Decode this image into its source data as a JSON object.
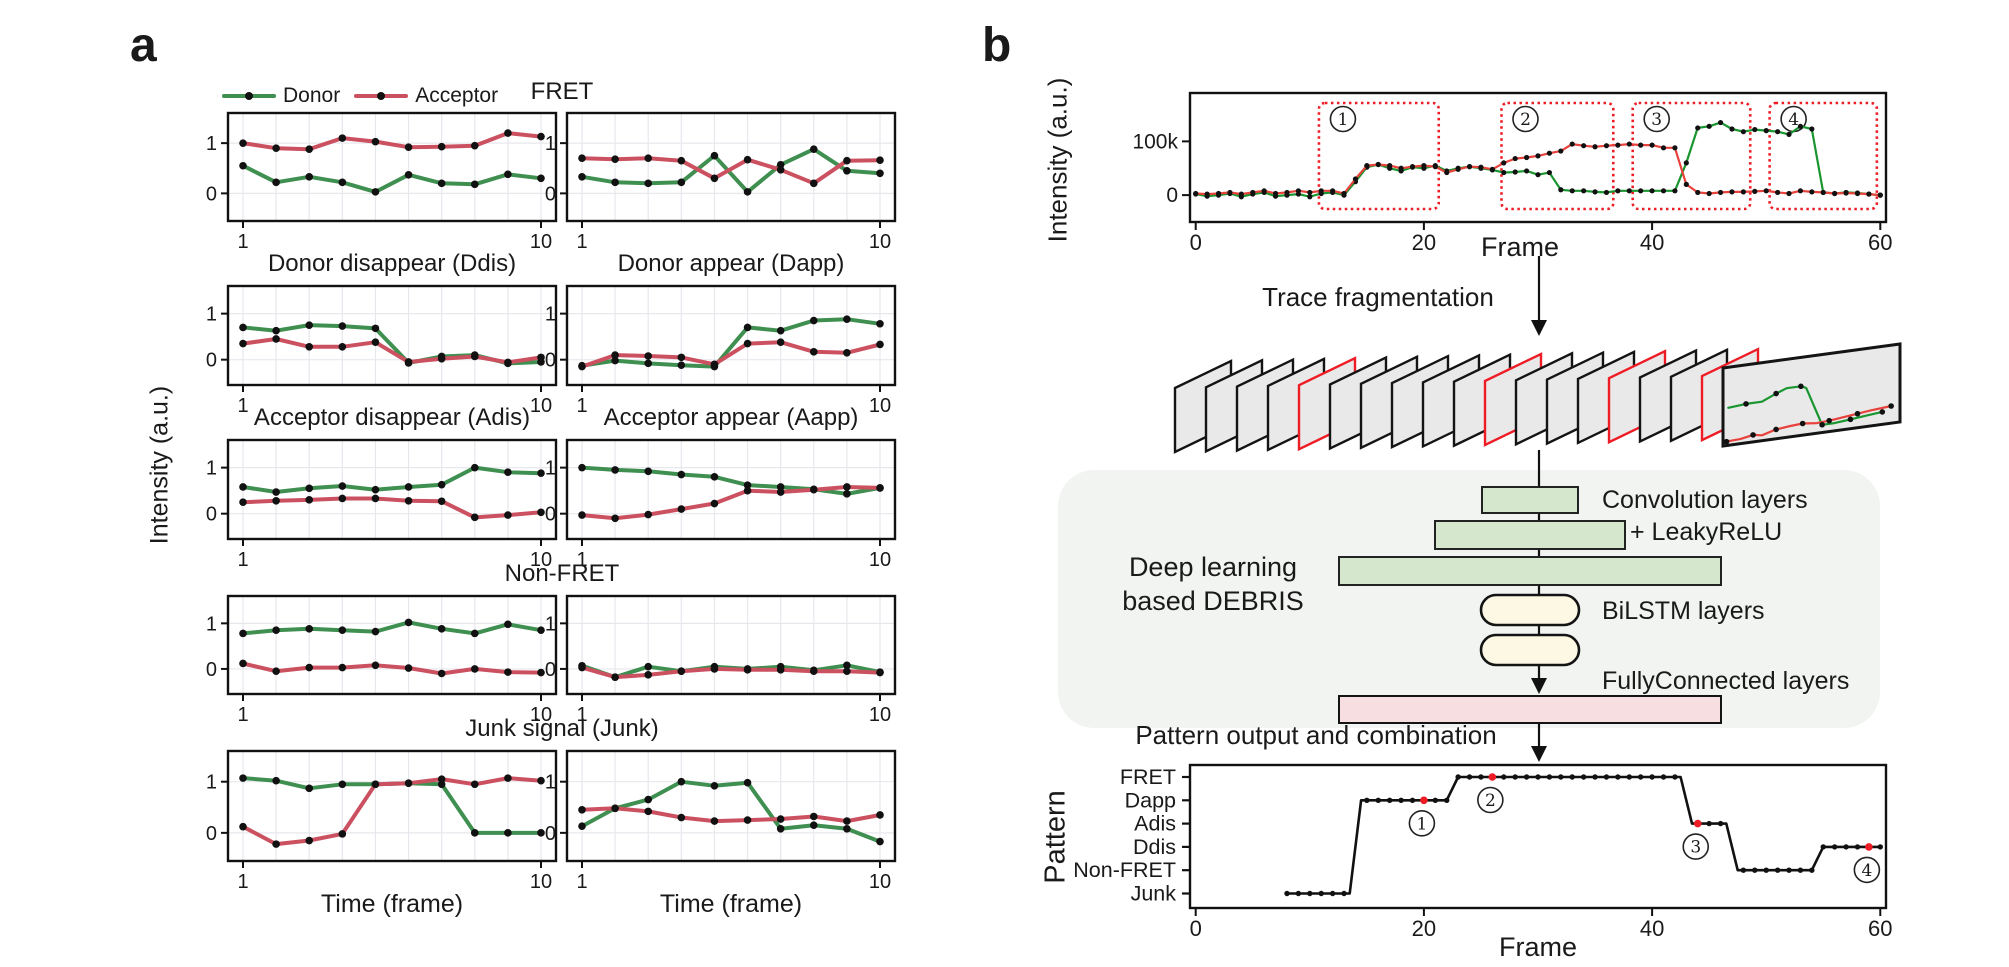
{
  "figure": {
    "panel_a_label": "a",
    "panel_b_label": "b"
  },
  "colors": {
    "donor_a": "#3f8f51",
    "acceptor_a": "#cb5160",
    "donor_b": "#1a9630",
    "acceptor_b": "#e8423c",
    "marker": "#111111",
    "grid": "#e7e7ee",
    "axis": "#111111",
    "box_red": "#ee1c25",
    "card_fill": "#e9e9e9",
    "card_edge": "#141414",
    "dl_bg": "#f2f4f1",
    "conv_fill": "#d5e8cd",
    "lstm_fill": "#fcf8e4",
    "fc_fill": "#f7dee1"
  },
  "legend": {
    "donor": "Donor",
    "acceptor": "Acceptor"
  },
  "panel_a": {
    "ylabel": "Intensity (a.u.)",
    "xlabel": "Time (frame)",
    "titles": {
      "fret": "FRET",
      "ddis": "Donor disappear (Ddis)",
      "dapp": "Donor appear (Dapp)",
      "adis": "Acceptor disappear (Adis)",
      "aapp": "Acceptor appear (Aapp)",
      "nonfret": "Non-FRET",
      "junk": "Junk signal (Junk)"
    },
    "rows": [
      {
        "title_span": "row",
        "charts": [
          "a-fret-left",
          "a-fret-right"
        ]
      },
      {
        "title_span": "each",
        "charts": [
          "a-ddis",
          "a-dapp"
        ]
      },
      {
        "title_span": "each",
        "charts": [
          "a-adis",
          "a-aapp"
        ]
      },
      {
        "title_span": "row",
        "charts": [
          "a-nonfret-left",
          "a-nonfret-right"
        ]
      },
      {
        "title_span": "row",
        "charts": [
          "a-junk-left",
          "a-junk-right"
        ]
      }
    ]
  },
  "panel_b": {
    "fragmentation_label": "Trace fragmentation",
    "stack": {
      "card_count": 18,
      "red_card_indices": [
        4,
        10,
        14,
        17
      ],
      "front_card_trace": {
        "donor": [
          [
            0.03,
            0.52
          ],
          [
            0.13,
            0.5
          ],
          [
            0.22,
            0.5
          ],
          [
            0.3,
            0.42
          ],
          [
            0.36,
            0.37
          ],
          [
            0.44,
            0.37
          ],
          [
            0.47,
            0.4
          ],
          [
            0.56,
            0.9
          ],
          [
            0.63,
            0.9
          ],
          [
            0.72,
            0.88
          ],
          [
            0.81,
            0.86
          ],
          [
            0.9,
            0.84
          ]
        ],
        "acceptor": [
          [
            0.02,
            0.95
          ],
          [
            0.1,
            0.94
          ],
          [
            0.17,
            0.91
          ],
          [
            0.22,
            0.93
          ],
          [
            0.3,
            0.88
          ],
          [
            0.38,
            0.86
          ],
          [
            0.45,
            0.85
          ],
          [
            0.53,
            0.87
          ],
          [
            0.6,
            0.86
          ],
          [
            0.68,
            0.84
          ],
          [
            0.76,
            0.82
          ],
          [
            0.84,
            0.8
          ],
          [
            0.95,
            0.78
          ]
        ]
      }
    },
    "dl": {
      "left_label_line1": "Deep learning",
      "left_label_line2": "based DEBRIS",
      "conv_label_line1": "Convolution layers",
      "conv_label_line2": "+ LeakyReLU",
      "lstm_label": "BiLSTM layers",
      "fc_label": "FullyConnected layers"
    },
    "pattern_title": "Pattern output and combination"
  },
  "chart_data": [
    {
      "id": "a-fret-left",
      "type": "line",
      "title": "FRET",
      "xlabel": "Time (frame)",
      "ylabel": "Intensity (a.u.)",
      "x": [
        1,
        2,
        3,
        4,
        5,
        6,
        7,
        8,
        9,
        10
      ],
      "xtick_labels": [
        "1",
        "10"
      ],
      "ytick_values": [
        1,
        0
      ],
      "ytick_labels": [
        "1",
        "0"
      ],
      "ylim": [
        -0.55,
        1.6
      ],
      "series": [
        {
          "name": "Donor",
          "values": [
            0.55,
            0.22,
            0.33,
            0.22,
            0.03,
            0.37,
            0.2,
            0.18,
            0.38,
            0.3
          ]
        },
        {
          "name": "Acceptor",
          "values": [
            1.0,
            0.9,
            0.88,
            1.1,
            1.03,
            0.92,
            0.93,
            0.95,
            1.2,
            1.13
          ]
        }
      ]
    },
    {
      "id": "a-fret-right",
      "type": "line",
      "title": "FRET",
      "xlabel": "Time (frame)",
      "ylabel": "Intensity (a.u.)",
      "x": [
        1,
        2,
        3,
        4,
        5,
        6,
        7,
        8,
        9,
        10
      ],
      "xtick_labels": [
        "1",
        "10"
      ],
      "ytick_values": [
        1,
        0
      ],
      "ytick_labels": [
        "1",
        "0"
      ],
      "ylim": [
        -0.55,
        1.6
      ],
      "series": [
        {
          "name": "Donor",
          "values": [
            0.33,
            0.22,
            0.2,
            0.22,
            0.75,
            0.03,
            0.57,
            0.88,
            0.45,
            0.4
          ]
        },
        {
          "name": "Acceptor",
          "values": [
            0.7,
            0.68,
            0.7,
            0.65,
            0.3,
            0.67,
            0.47,
            0.2,
            0.65,
            0.66
          ]
        }
      ]
    },
    {
      "id": "a-ddis",
      "type": "line",
      "title": "Donor disappear (Ddis)",
      "xlabel": "Time (frame)",
      "ylabel": "Intensity (a.u.)",
      "x": [
        1,
        2,
        3,
        4,
        5,
        6,
        7,
        8,
        9,
        10
      ],
      "xtick_labels": [
        "1",
        "10"
      ],
      "ytick_values": [
        1,
        0
      ],
      "ytick_labels": [
        "1",
        "0"
      ],
      "ylim": [
        -0.55,
        1.6
      ],
      "series": [
        {
          "name": "Donor",
          "values": [
            0.7,
            0.63,
            0.75,
            0.73,
            0.68,
            -0.07,
            0.07,
            0.1,
            -0.08,
            -0.05
          ]
        },
        {
          "name": "Acceptor",
          "values": [
            0.35,
            0.45,
            0.28,
            0.28,
            0.38,
            -0.05,
            0.02,
            0.07,
            -0.06,
            0.05
          ]
        }
      ]
    },
    {
      "id": "a-dapp",
      "type": "line",
      "title": "Donor appear (Dapp)",
      "xlabel": "Time (frame)",
      "ylabel": "Intensity (a.u.)",
      "x": [
        1,
        2,
        3,
        4,
        5,
        6,
        7,
        8,
        9,
        10
      ],
      "xtick_labels": [
        "1",
        "10"
      ],
      "ytick_values": [
        1,
        0
      ],
      "ytick_labels": [
        "1",
        "0"
      ],
      "ylim": [
        -0.55,
        1.6
      ],
      "series": [
        {
          "name": "Donor",
          "values": [
            -0.13,
            -0.02,
            -0.08,
            -0.12,
            -0.15,
            0.7,
            0.63,
            0.85,
            0.88,
            0.78
          ]
        },
        {
          "name": "Acceptor",
          "values": [
            -0.15,
            0.1,
            0.08,
            0.05,
            -0.1,
            0.35,
            0.38,
            0.17,
            0.15,
            0.33
          ]
        }
      ]
    },
    {
      "id": "a-adis",
      "type": "line",
      "title": "Acceptor disappear (Adis)",
      "xlabel": "Time (frame)",
      "ylabel": "Intensity (a.u.)",
      "x": [
        1,
        2,
        3,
        4,
        5,
        6,
        7,
        8,
        9,
        10
      ],
      "xtick_labels": [
        "1",
        "10"
      ],
      "ytick_values": [
        1,
        0
      ],
      "ytick_labels": [
        "1",
        "0"
      ],
      "ylim": [
        -0.55,
        1.6
      ],
      "series": [
        {
          "name": "Donor",
          "values": [
            0.58,
            0.47,
            0.55,
            0.6,
            0.52,
            0.58,
            0.63,
            1.0,
            0.9,
            0.88
          ]
        },
        {
          "name": "Acceptor",
          "values": [
            0.25,
            0.28,
            0.3,
            0.33,
            0.33,
            0.28,
            0.27,
            -0.08,
            -0.03,
            0.03
          ]
        }
      ]
    },
    {
      "id": "a-aapp",
      "type": "line",
      "title": "Acceptor appear (Aapp)",
      "xlabel": "Time (frame)",
      "ylabel": "Intensity (a.u.)",
      "x": [
        1,
        2,
        3,
        4,
        5,
        6,
        7,
        8,
        9,
        10
      ],
      "xtick_labels": [
        "1",
        "10"
      ],
      "ytick_values": [
        1,
        0
      ],
      "ytick_labels": [
        "1",
        "0"
      ],
      "ylim": [
        -0.55,
        1.6
      ],
      "series": [
        {
          "name": "Donor",
          "values": [
            1.0,
            0.95,
            0.92,
            0.85,
            0.8,
            0.62,
            0.58,
            0.53,
            0.43,
            0.56
          ]
        },
        {
          "name": "Acceptor",
          "values": [
            -0.03,
            -0.1,
            -0.02,
            0.1,
            0.22,
            0.5,
            0.47,
            0.52,
            0.58,
            0.56
          ]
        }
      ]
    },
    {
      "id": "a-nonfret-left",
      "type": "line",
      "title": "Non-FRET",
      "xlabel": "Time (frame)",
      "ylabel": "Intensity (a.u.)",
      "x": [
        1,
        2,
        3,
        4,
        5,
        6,
        7,
        8,
        9,
        10
      ],
      "xtick_labels": [
        "1",
        "10"
      ],
      "ytick_values": [
        1,
        0
      ],
      "ytick_labels": [
        "1",
        "0"
      ],
      "ylim": [
        -0.55,
        1.6
      ],
      "series": [
        {
          "name": "Donor",
          "values": [
            0.78,
            0.85,
            0.88,
            0.85,
            0.82,
            1.02,
            0.88,
            0.78,
            0.98,
            0.85
          ]
        },
        {
          "name": "Acceptor",
          "values": [
            0.12,
            -0.05,
            0.03,
            0.03,
            0.08,
            0.02,
            -0.1,
            0.0,
            -0.07,
            -0.08
          ]
        }
      ]
    },
    {
      "id": "a-nonfret-right",
      "type": "line",
      "title": "Non-FRET",
      "xlabel": "Time (frame)",
      "ylabel": "Intensity (a.u.)",
      "x": [
        1,
        2,
        3,
        4,
        5,
        6,
        7,
        8,
        9,
        10
      ],
      "xtick_labels": [
        "1",
        "10"
      ],
      "ytick_values": [
        1,
        0
      ],
      "ytick_labels": [
        "1",
        "0"
      ],
      "ylim": [
        -0.55,
        1.6
      ],
      "series": [
        {
          "name": "Donor",
          "values": [
            0.07,
            -0.18,
            0.05,
            -0.05,
            0.05,
            0.0,
            0.05,
            -0.03,
            0.08,
            -0.07
          ]
        },
        {
          "name": "Acceptor",
          "values": [
            0.03,
            -0.18,
            -0.13,
            -0.05,
            0.0,
            -0.02,
            -0.02,
            -0.05,
            -0.05,
            -0.08
          ]
        }
      ]
    },
    {
      "id": "a-junk-left",
      "type": "line",
      "title": "Junk signal (Junk)",
      "xlabel": "Time (frame)",
      "ylabel": "Intensity (a.u.)",
      "x": [
        1,
        2,
        3,
        4,
        5,
        6,
        7,
        8,
        9,
        10
      ],
      "xtick_labels": [
        "1",
        "10"
      ],
      "ytick_values": [
        1,
        0
      ],
      "ytick_labels": [
        "1",
        "0"
      ],
      "ylim": [
        -0.55,
        1.6
      ],
      "series": [
        {
          "name": "Donor",
          "values": [
            1.07,
            1.02,
            0.87,
            0.95,
            0.95,
            0.97,
            0.95,
            0.0,
            0.0,
            0.0
          ]
        },
        {
          "name": "Acceptor",
          "values": [
            0.12,
            -0.22,
            -0.15,
            -0.02,
            0.95,
            0.97,
            1.05,
            0.95,
            1.07,
            1.02
          ]
        }
      ]
    },
    {
      "id": "a-junk-right",
      "type": "line",
      "title": "Junk signal (Junk)",
      "xlabel": "Time (frame)",
      "ylabel": "Intensity (a.u.)",
      "x": [
        1,
        2,
        3,
        4,
        5,
        6,
        7,
        8,
        9,
        10
      ],
      "xtick_labels": [
        "1",
        "10"
      ],
      "ytick_values": [
        1,
        0
      ],
      "ytick_labels": [
        "1",
        "0"
      ],
      "ylim": [
        -0.55,
        1.6
      ],
      "series": [
        {
          "name": "Donor",
          "values": [
            0.13,
            0.48,
            0.65,
            1.0,
            0.92,
            0.98,
            0.08,
            0.15,
            0.08,
            -0.17
          ]
        },
        {
          "name": "Acceptor",
          "values": [
            0.45,
            0.48,
            0.42,
            0.3,
            0.23,
            0.25,
            0.27,
            0.32,
            0.23,
            0.35
          ]
        }
      ]
    },
    {
      "id": "b-trace",
      "type": "line",
      "title": "",
      "xlabel": "Frame",
      "ylabel": "Intensity (a.u.)",
      "x_unit": "frame 0-60",
      "y_unit": "a.u. x1000",
      "xtick_values": [
        0,
        20,
        40,
        60
      ],
      "xtick_labels": [
        "0",
        "20",
        "40",
        "60"
      ],
      "ytick_values": [
        100,
        0
      ],
      "ytick_labels": [
        "100k",
        "0"
      ],
      "ylim": [
        -50,
        190
      ],
      "series": [
        {
          "name": "Donor",
          "values": [
            2,
            -2,
            0,
            3,
            -3,
            2,
            5,
            -2,
            0,
            2,
            -3,
            3,
            5,
            0,
            25,
            52,
            57,
            50,
            45,
            52,
            50,
            55,
            45,
            50,
            53,
            50,
            47,
            42,
            43,
            45,
            38,
            42,
            10,
            8,
            8,
            6,
            5,
            8,
            8,
            8,
            8,
            8,
            8,
            60,
            125,
            128,
            135,
            123,
            118,
            122,
            120,
            118,
            113,
            128,
            123,
            5,
            3,
            5,
            4,
            2,
            0
          ]
        },
        {
          "name": "Acceptor",
          "values": [
            3,
            2,
            3,
            5,
            2,
            5,
            8,
            3,
            5,
            8,
            5,
            8,
            8,
            3,
            30,
            55,
            57,
            55,
            50,
            53,
            55,
            53,
            42,
            48,
            53,
            52,
            48,
            60,
            68,
            70,
            73,
            78,
            82,
            95,
            92,
            90,
            92,
            93,
            95,
            93,
            93,
            88,
            88,
            20,
            5,
            3,
            5,
            6,
            6,
            7,
            8,
            5,
            3,
            8,
            6,
            5,
            3,
            4,
            3,
            2,
            0
          ]
        }
      ],
      "boxes": [
        {
          "label": "1",
          "from": 10.8,
          "to": 21.3
        },
        {
          "label": "2",
          "from": 26.8,
          "to": 36.6
        },
        {
          "label": "3",
          "from": 38.3,
          "to": 48.6
        },
        {
          "label": "4",
          "from": 50.3,
          "to": 59.7
        }
      ]
    },
    {
      "id": "b-pattern",
      "type": "step",
      "title": "Pattern output and combination",
      "xlabel": "Frame",
      "ylabel": "Pattern",
      "categories": [
        "FRET",
        "Dapp",
        "Adis",
        "Ddis",
        "Non-FRET",
        "Junk"
      ],
      "xtick_values": [
        0,
        20,
        40,
        60
      ],
      "xtick_labels": [
        "0",
        "20",
        "40",
        "60"
      ],
      "segments": [
        {
          "category": "Junk",
          "from": 8,
          "to": 13.5
        },
        {
          "category": "Dapp",
          "from": 14.5,
          "to": 22
        },
        {
          "category": "FRET",
          "from": 23,
          "to": 42.5
        },
        {
          "category": "Adis",
          "from": 43.5,
          "to": 46.5
        },
        {
          "category": "Non-FRET",
          "from": 47.5,
          "to": 54
        },
        {
          "category": "Ddis",
          "from": 55,
          "to": 60
        }
      ],
      "markers": [
        {
          "frame": 20,
          "category": "Dapp",
          "label": "1"
        },
        {
          "frame": 26,
          "category": "FRET",
          "label": "2"
        },
        {
          "frame": 44,
          "category": "Adis",
          "label": "3"
        },
        {
          "frame": 59,
          "category": "Ddis",
          "label": "4"
        }
      ]
    }
  ]
}
